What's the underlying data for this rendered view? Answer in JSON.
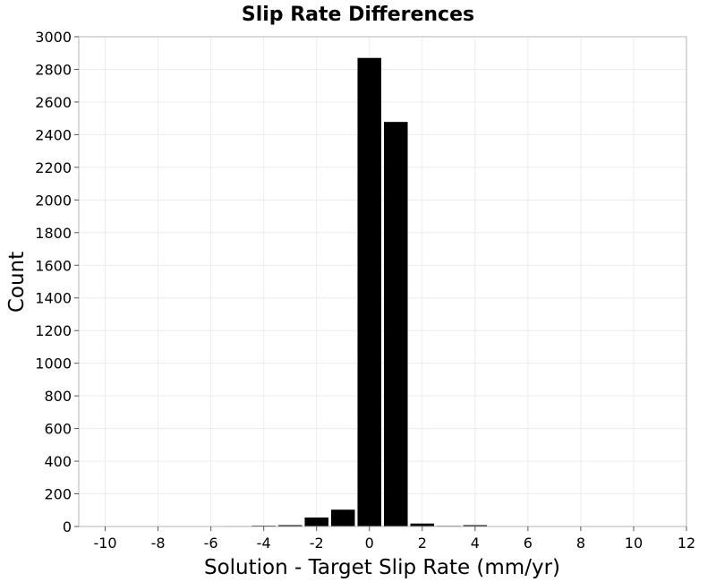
{
  "chart_data": {
    "type": "bar",
    "title": "Slip Rate Differences",
    "xlabel": "Solution - Target Slip Rate (mm/yr)",
    "ylabel": "Count",
    "xlim": [
      -11,
      12
    ],
    "ylim": [
      0,
      3000
    ],
    "xticks": [
      -10,
      -8,
      -6,
      -4,
      -2,
      0,
      2,
      4,
      6,
      8,
      10,
      12
    ],
    "xtick_labels": [
      "-10",
      "-8",
      "-6",
      "-4",
      "-2",
      "0",
      "2",
      "4",
      "6",
      "8",
      "10",
      "12"
    ],
    "yticks": [
      0,
      200,
      400,
      600,
      800,
      1000,
      1200,
      1400,
      1600,
      1800,
      2000,
      2200,
      2400,
      2600,
      2800,
      3000
    ],
    "ytick_labels": [
      "0",
      "200",
      "400",
      "600",
      "800",
      "1000",
      "1200",
      "1400",
      "1600",
      "1800",
      "2000",
      "2200",
      "2400",
      "2600",
      "2800",
      "3000"
    ],
    "bin_width": 1,
    "bins": [
      {
        "x": -10,
        "value": 2
      },
      {
        "x": -9,
        "value": 1
      },
      {
        "x": -8,
        "value": 1
      },
      {
        "x": -7,
        "value": 1
      },
      {
        "x": -6,
        "value": 2
      },
      {
        "x": -5,
        "value": 3
      },
      {
        "x": -4,
        "value": 5
      },
      {
        "x": -3,
        "value": 8
      },
      {
        "x": -2,
        "value": 55
      },
      {
        "x": -1,
        "value": 103
      },
      {
        "x": 0,
        "value": 2870
      },
      {
        "x": 1,
        "value": 2478
      },
      {
        "x": 2,
        "value": 18
      },
      {
        "x": 3,
        "value": 4
      },
      {
        "x": 4,
        "value": 8
      },
      {
        "x": 5,
        "value": 2
      },
      {
        "x": 6,
        "value": 1
      },
      {
        "x": 7,
        "value": 1
      },
      {
        "x": 8,
        "value": 1
      },
      {
        "x": 9,
        "value": 1
      },
      {
        "x": 10,
        "value": 0
      },
      {
        "x": 11,
        "value": 0
      }
    ],
    "grid": true,
    "legend": "none",
    "bar_color": "#000000"
  }
}
